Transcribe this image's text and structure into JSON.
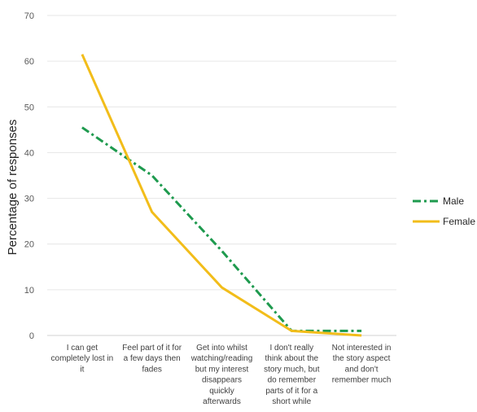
{
  "chart_data": {
    "type": "line",
    "title": "",
    "xlabel": "",
    "ylabel": "Percentage of responses",
    "ylim": [
      0,
      70
    ],
    "yticks": [
      0,
      10,
      20,
      30,
      40,
      50,
      60,
      70
    ],
    "grid": true,
    "legend_position": "right",
    "categories": [
      "I can get completely lost in it",
      "Feel part of it for a few days then fades",
      "Get into whilst watching/reading but my interest disappears quickly afterwards",
      "I don't really think about the story much, but do remember parts of it for a short while",
      "Not interested in the story aspect and don't remember much"
    ],
    "category_lines": [
      [
        "I can get",
        "completely lost in",
        "it"
      ],
      [
        "Feel part of it for",
        "a few days then",
        "fades"
      ],
      [
        "Get into whilst",
        "watching/reading",
        "but my interest",
        "disappears",
        "quickly",
        "afterwards"
      ],
      [
        "I don't really",
        "think about the",
        "story much, but",
        "do remember",
        "parts of it for a",
        "short while"
      ],
      [
        "Not interested in",
        "the story aspect",
        "and don't",
        "remember much"
      ]
    ],
    "series": [
      {
        "name": "Male",
        "values": [
          45.5,
          35,
          18.5,
          1,
          1
        ],
        "color": "#1e9a4e",
        "dash": "dashdot"
      },
      {
        "name": "Female",
        "values": [
          61.5,
          27,
          10.5,
          1,
          0
        ],
        "color": "#f2bd1a",
        "dash": "solid"
      }
    ]
  }
}
